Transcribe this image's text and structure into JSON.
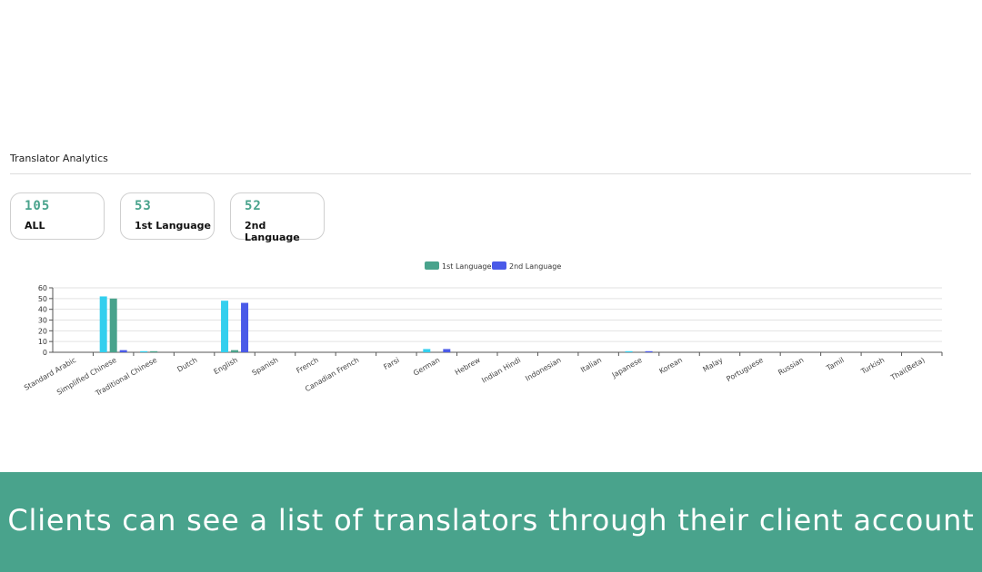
{
  "section": {
    "title": "Translator Analytics"
  },
  "cards": [
    {
      "value": "105",
      "label": "ALL"
    },
    {
      "value": "53",
      "label": "1st Language"
    },
    {
      "value": "52",
      "label": "2nd Language"
    }
  ],
  "colors": {
    "all": "#33cfee",
    "first": "#49a38c",
    "second": "#4a5ae8",
    "banner": "#49a38c"
  },
  "chart_data": {
    "type": "bar",
    "legend_position": "top-center",
    "grid": true,
    "ylim": [
      0,
      60
    ],
    "yticks": [
      "0",
      "10",
      "20",
      "30",
      "40",
      "50",
      "60"
    ],
    "categories": [
      "Standard Arabic",
      "Simplified Chinese",
      "Traditional Chinese",
      "Dutch",
      "English",
      "Spanish",
      "French",
      "Canadian French",
      "Farsi",
      "German",
      "Hebrew",
      "Indian Hindi",
      "Indonesian",
      "Italian",
      "Japanese",
      "Korean",
      "Malay",
      "Portuguese",
      "Russian",
      "Tamil",
      "Turkish",
      "Thai(Beta)"
    ],
    "series": [
      {
        "color": "#33cfee",
        "values": [
          0,
          52,
          1,
          0,
          48,
          0,
          0,
          0,
          0,
          3,
          0,
          0,
          0,
          0,
          1,
          0,
          0,
          0,
          0,
          0,
          0,
          0
        ]
      },
      {
        "name": "1st Language",
        "color": "#49a38c",
        "values": [
          0,
          50,
          1,
          0,
          2,
          0,
          0,
          0,
          0,
          0,
          0,
          0,
          0,
          0,
          0,
          0,
          0,
          0,
          0,
          0,
          0,
          0
        ]
      },
      {
        "name": "2nd Language",
        "color": "#4a5ae8",
        "values": [
          0,
          2,
          0,
          0,
          46,
          0,
          0,
          0,
          0,
          3,
          0,
          0,
          0,
          0,
          1,
          0,
          0,
          0,
          0,
          0,
          0,
          0
        ]
      }
    ]
  },
  "banner": {
    "text": "Clients can see a list of translators through their client account"
  }
}
